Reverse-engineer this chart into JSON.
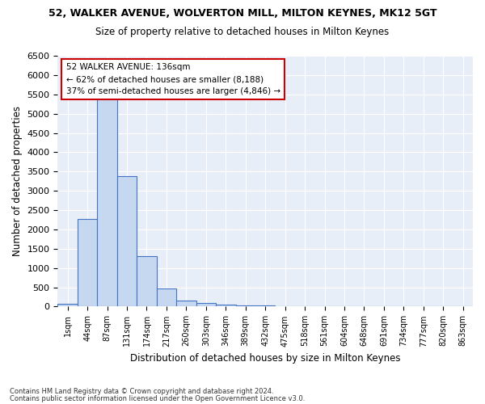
{
  "title": "52, WALKER AVENUE, WOLVERTON MILL, MILTON KEYNES, MK12 5GT",
  "subtitle": "Size of property relative to detached houses in Milton Keynes",
  "xlabel": "Distribution of detached houses by size in Milton Keynes",
  "ylabel": "Number of detached properties",
  "categories": [
    "1sqm",
    "44sqm",
    "87sqm",
    "131sqm",
    "174sqm",
    "217sqm",
    "260sqm",
    "303sqm",
    "346sqm",
    "389sqm",
    "432sqm",
    "475sqm",
    "518sqm",
    "561sqm",
    "604sqm",
    "648sqm",
    "691sqm",
    "734sqm",
    "777sqm",
    "820sqm",
    "863sqm"
  ],
  "bar_values": [
    80,
    2270,
    5420,
    3380,
    1300,
    480,
    160,
    95,
    60,
    40,
    20,
    10,
    5,
    3,
    2,
    1,
    1,
    0,
    0,
    0,
    0
  ],
  "bar_color": "#c5d8f0",
  "bar_edge_color": "#4472c4",
  "ylim": [
    0,
    6500
  ],
  "yticks": [
    0,
    500,
    1000,
    1500,
    2000,
    2500,
    3000,
    3500,
    4000,
    4500,
    5000,
    5500,
    6000,
    6500
  ],
  "annotation_title": "52 WALKER AVENUE: 136sqm",
  "annotation_line1": "← 62% of detached houses are smaller (8,188)",
  "annotation_line2": "37% of semi-detached houses are larger (4,846) →",
  "annotation_box_color": "#ffffff",
  "annotation_box_edge": "#cc0000",
  "background_color": "#e8eef8",
  "footer1": "Contains HM Land Registry data © Crown copyright and database right 2024.",
  "footer2": "Contains public sector information licensed under the Open Government Licence v3.0."
}
